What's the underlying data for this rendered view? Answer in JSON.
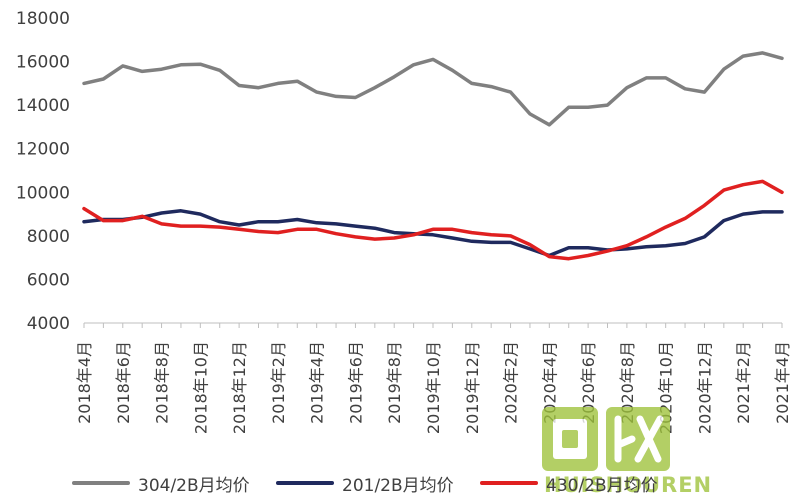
{
  "chart_data": {
    "type": "line",
    "title": "",
    "xlabel": "",
    "ylabel": "",
    "ylim": [
      4000,
      18000
    ],
    "yticks": [
      4000,
      6000,
      8000,
      10000,
      12000,
      14000,
      16000,
      18000
    ],
    "ytick_labels": [
      "4000",
      "6000",
      "8000",
      "10000",
      "12000",
      "14000",
      "16000",
      "18000"
    ],
    "grid": false,
    "legend_position": "bottom",
    "x": [
      "2018年4月",
      "2018年5月",
      "2018年6月",
      "2018年7月",
      "2018年8月",
      "2018年9月",
      "2018年10月",
      "2018年11月",
      "2018年12月",
      "2019年1月",
      "2019年2月",
      "2019年3月",
      "2019年4月",
      "2019年5月",
      "2019年6月",
      "2019年7月",
      "2019年8月",
      "2019年9月",
      "2019年10月",
      "2019年11月",
      "2019年12月",
      "2020年1月",
      "2020年2月",
      "2020年3月",
      "2020年4月",
      "2020年5月",
      "2020年6月",
      "2020年7月",
      "2020年8月",
      "2020年9月",
      "2020年10月",
      "2020年11月",
      "2020年12月",
      "2021年1月",
      "2021年2月",
      "2021年3月",
      "2021年4月"
    ],
    "xtick_labels": [
      "2018年4月",
      "2018年6月",
      "2018年8月",
      "2018年10月",
      "2018年12月",
      "2019年2月",
      "2019年4月",
      "2019年6月",
      "2019年8月",
      "2019年10月",
      "2019年12月",
      "2020年2月",
      "2020年4月",
      "2020年6月",
      "2020年8月",
      "2020年10月",
      "2020年12月",
      "2021年2月",
      "2021年4月"
    ],
    "series": [
      {
        "name": "304/2B月均价",
        "color": "#808080",
        "values": [
          15000,
          15200,
          15800,
          15550,
          15650,
          15850,
          15880,
          15600,
          14900,
          14800,
          15000,
          15100,
          14600,
          14400,
          14350,
          14800,
          15300,
          15850,
          16100,
          15600,
          15000,
          14850,
          14600,
          13600,
          13100,
          13900,
          13900,
          14000,
          14800,
          15250,
          15250,
          14750,
          14600,
          15650,
          16250,
          16400,
          16150
        ]
      },
      {
        "name": "201/2B月均价",
        "color": "#1f2a5e",
        "values": [
          8650,
          8750,
          8750,
          8850,
          9050,
          9150,
          9000,
          8650,
          8500,
          8650,
          8650,
          8750,
          8600,
          8550,
          8450,
          8350,
          8150,
          8100,
          8050,
          7900,
          7750,
          7700,
          7700,
          7400,
          7100,
          7450,
          7450,
          7350,
          7400,
          7500,
          7550,
          7650,
          7950,
          8700,
          9000,
          9100,
          9100
        ]
      },
      {
        "name": "430/2B月均价",
        "color": "#e02020",
        "values": [
          9250,
          8700,
          8700,
          8900,
          8550,
          8450,
          8450,
          8400,
          8300,
          8200,
          8150,
          8300,
          8300,
          8100,
          7950,
          7850,
          7900,
          8050,
          8300,
          8300,
          8150,
          8050,
          8000,
          7600,
          7050,
          6950,
          7100,
          7300,
          7550,
          7950,
          8400,
          8800,
          9400,
          10100,
          10350,
          10500,
          10000
        ]
      }
    ]
  },
  "watermark": {
    "logo_text": "回收",
    "text": "HUISHOUREN",
    "color": "#9ec23a"
  }
}
